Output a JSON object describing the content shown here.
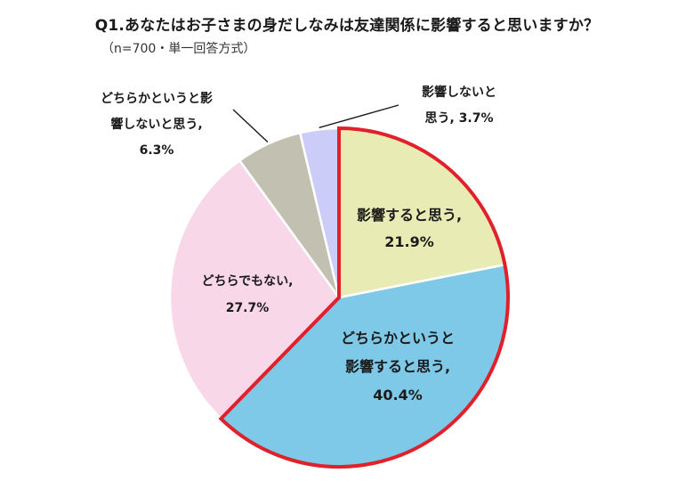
{
  "chart_data": {
    "type": "pie",
    "title": "Q1.あなたはお子さまの身だしなみは友達関係に影響すると思いますか？",
    "subtitle": "（n=700・単一回答方式）",
    "unit": "%",
    "start": "12 o'clock",
    "direction": "clockwise",
    "slices": [
      {
        "label_lines": [
          "影響すると思う,"
        ],
        "value_text": "21.9%",
        "value": 21.9,
        "color": "#e8ecb4",
        "highlighted": true
      },
      {
        "label_lines": [
          "どちらかというと",
          "影響すると思う,"
        ],
        "value_text": "40.4%",
        "value": 40.4,
        "color": "#7ec8e8",
        "highlighted": true
      },
      {
        "label_lines": [
          "どちらでもない,"
        ],
        "value_text": "27.7%",
        "value": 27.7,
        "color": "#f8d8e8",
        "highlighted": false
      },
      {
        "label_lines": [
          "どちらかというと影",
          "響しないと思う,"
        ],
        "value_text": "6.3%",
        "value": 6.3,
        "color": "#c2c0b0",
        "highlighted": false
      },
      {
        "label_lines": [
          "影響しないと",
          "思う, 3.7%"
        ],
        "value_text": "",
        "value": 3.7,
        "color": "#ccccf8",
        "highlighted": false
      }
    ],
    "highlight_color": "#e0202a"
  }
}
